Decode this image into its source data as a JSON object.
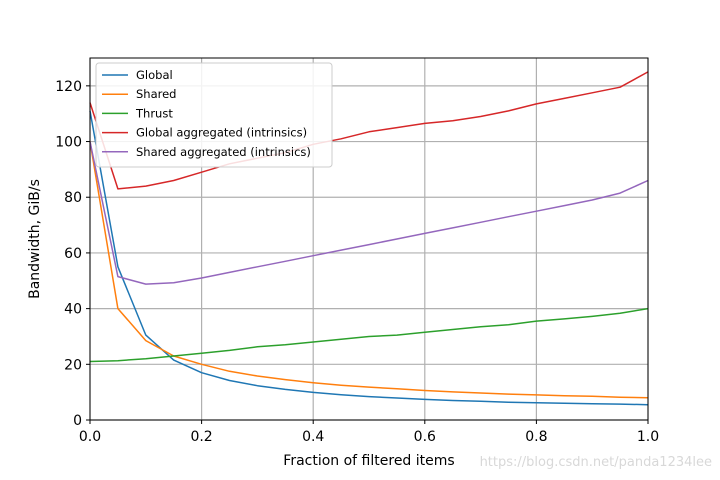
{
  "chart_data": {
    "type": "line",
    "title": "",
    "xlabel": "Fraction of filtered items",
    "ylabel": "Bandwidth, GiB/s",
    "xlim": [
      0,
      1
    ],
    "ylim": [
      0,
      130
    ],
    "xticks": [
      0,
      0.2,
      0.4,
      0.6,
      0.8,
      1.0
    ],
    "xtick_labels": [
      "0.0",
      "0.2",
      "0.4",
      "0.6",
      "0.8",
      "1.0"
    ],
    "yticks": [
      0,
      20,
      40,
      60,
      80,
      100,
      120
    ],
    "ytick_labels": [
      "0",
      "20",
      "40",
      "60",
      "80",
      "100",
      "120"
    ],
    "grid": true,
    "legend_position": "top-left",
    "series": [
      {
        "name": "Global",
        "color": "#1f77b4",
        "x": [
          0,
          0.05,
          0.1,
          0.15,
          0.2,
          0.25,
          0.3,
          0.35,
          0.4,
          0.45,
          0.5,
          0.55,
          0.6,
          0.65,
          0.7,
          0.75,
          0.8,
          0.85,
          0.9,
          0.95,
          1.0
        ],
        "y": [
          111,
          55,
          30.5,
          21.5,
          17,
          14.2,
          12.3,
          11,
          9.9,
          9.1,
          8.4,
          7.9,
          7.4,
          7.0,
          6.7,
          6.4,
          6.2,
          6.0,
          5.8,
          5.7,
          5.5
        ]
      },
      {
        "name": "Shared",
        "color": "#ff7f0e",
        "x": [
          0,
          0.05,
          0.1,
          0.15,
          0.2,
          0.25,
          0.3,
          0.35,
          0.4,
          0.45,
          0.5,
          0.55,
          0.6,
          0.65,
          0.7,
          0.75,
          0.8,
          0.85,
          0.9,
          0.95,
          1.0
        ],
        "y": [
          100,
          40,
          28.5,
          23,
          20,
          17.5,
          15.8,
          14.5,
          13.4,
          12.5,
          11.8,
          11.2,
          10.6,
          10.1,
          9.7,
          9.3,
          9.0,
          8.7,
          8.5,
          8.2,
          8.0
        ]
      },
      {
        "name": "Thrust",
        "color": "#2ca02c",
        "x": [
          0,
          0.05,
          0.1,
          0.15,
          0.2,
          0.25,
          0.3,
          0.35,
          0.4,
          0.45,
          0.5,
          0.55,
          0.6,
          0.65,
          0.7,
          0.75,
          0.8,
          0.85,
          0.9,
          0.95,
          1.0
        ],
        "y": [
          21,
          21.3,
          22,
          23,
          24,
          25,
          26.3,
          27,
          28,
          29,
          30,
          30.5,
          31.5,
          32.5,
          33.5,
          34.2,
          35.5,
          36.3,
          37.2,
          38.3,
          40
        ]
      },
      {
        "name": "Global aggregated (intrinsics)",
        "color": "#d62728",
        "x": [
          0,
          0.05,
          0.1,
          0.15,
          0.2,
          0.25,
          0.3,
          0.35,
          0.4,
          0.45,
          0.5,
          0.55,
          0.6,
          0.65,
          0.7,
          0.75,
          0.8,
          0.85,
          0.9,
          0.95,
          1.0
        ],
        "y": [
          114,
          83,
          84,
          86,
          89,
          92,
          94,
          96,
          99,
          101,
          103.5,
          105,
          106.5,
          107.5,
          109,
          111,
          113.5,
          115.5,
          117.5,
          119.5,
          125
        ]
      },
      {
        "name": "Shared aggregated (intrinsics)",
        "color": "#9467bd",
        "x": [
          0,
          0.05,
          0.1,
          0.15,
          0.2,
          0.25,
          0.3,
          0.35,
          0.4,
          0.45,
          0.5,
          0.55,
          0.6,
          0.65,
          0.7,
          0.75,
          0.8,
          0.85,
          0.9,
          0.95,
          1.0
        ],
        "y": [
          100,
          51.5,
          48.8,
          49.3,
          51,
          53,
          55,
          57,
          59,
          61,
          63,
          65,
          67,
          69,
          71,
          73,
          75,
          77,
          79,
          81.5,
          86
        ]
      }
    ]
  },
  "watermark": "https://blog.csdn.net/panda1234lee"
}
